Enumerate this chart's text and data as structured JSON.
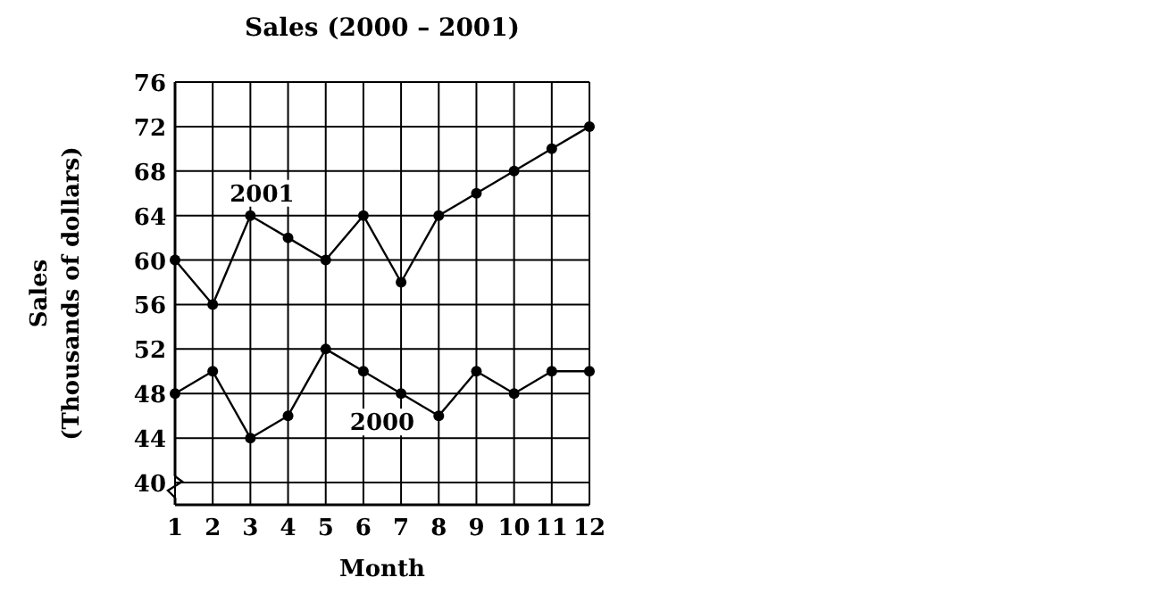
{
  "chart_data": {
    "type": "line",
    "title": "Sales (2000 – 2001)",
    "xlabel": "Month",
    "ylabel": "Sales\n(Thousands of dollars)",
    "x": [
      1,
      2,
      3,
      4,
      5,
      6,
      7,
      8,
      9,
      10,
      11,
      12
    ],
    "xlim": [
      1,
      12
    ],
    "xticks": [
      1,
      2,
      3,
      4,
      5,
      6,
      7,
      8,
      9,
      10,
      11,
      12
    ],
    "ylim": [
      38,
      76
    ],
    "yticks": [
      40,
      44,
      48,
      52,
      56,
      60,
      64,
      68,
      72,
      76
    ],
    "grid": true,
    "marker": "circle",
    "line_style": "solid",
    "series": [
      {
        "name": "2001",
        "color": "#000000",
        "values": [
          60,
          56,
          64,
          62,
          60,
          64,
          58,
          64,
          66,
          68,
          70,
          72
        ]
      },
      {
        "name": "2000",
        "color": "#000000",
        "values": [
          48,
          50,
          44,
          46,
          52,
          50,
          48,
          46,
          50,
          48,
          50,
          50
        ]
      }
    ]
  }
}
